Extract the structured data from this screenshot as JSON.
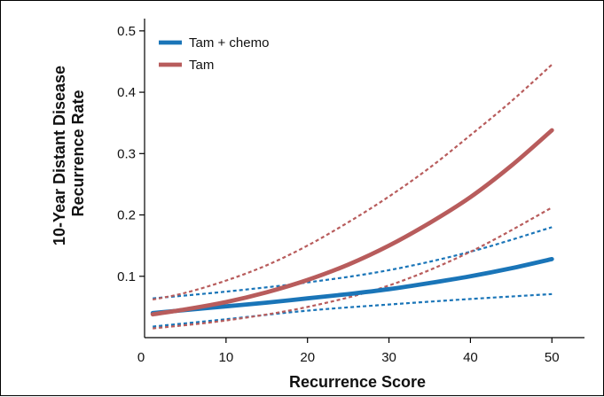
{
  "chart_data": {
    "type": "line",
    "xlabel": "Recurrence Score",
    "ylabel_lines": [
      "10-Year Distant Disease",
      "Recurrence Rate"
    ],
    "xlim": [
      0,
      54
    ],
    "ylim": [
      0,
      0.52
    ],
    "x_ticks": [
      0,
      10,
      20,
      30,
      40,
      50
    ],
    "x_tick_labels": [
      "0",
      "10",
      "20",
      "30",
      "40",
      "50"
    ],
    "y_ticks": [
      0.1,
      0.2,
      0.3,
      0.4,
      0.5
    ],
    "y_tick_labels": [
      "0.1",
      "0.2",
      "0.3",
      "0.4",
      "0.5"
    ],
    "grid": false,
    "legend_position": "top-left",
    "series": [
      {
        "name": "Tam + chemo",
        "color": "#1a75b8",
        "style": "solid",
        "in_legend": true,
        "x": [
          1,
          5,
          10,
          15,
          20,
          25,
          30,
          35,
          40,
          45,
          50
        ],
        "y": [
          0.04,
          0.045,
          0.051,
          0.057,
          0.064,
          0.071,
          0.079,
          0.089,
          0.1,
          0.113,
          0.128
        ]
      },
      {
        "name": "Tam",
        "color": "#b85c5c",
        "style": "solid",
        "in_legend": true,
        "x": [
          1,
          5,
          10,
          15,
          20,
          25,
          30,
          35,
          40,
          45,
          50
        ],
        "y": [
          0.038,
          0.046,
          0.058,
          0.074,
          0.094,
          0.119,
          0.15,
          0.187,
          0.229,
          0.28,
          0.338
        ]
      },
      {
        "name": "",
        "color": "#1a75b8",
        "style": "dashed",
        "in_legend": false,
        "x": [
          1,
          10,
          20,
          30,
          40,
          50
        ],
        "y": [
          0.064,
          0.075,
          0.09,
          0.11,
          0.14,
          0.18
        ]
      },
      {
        "name": "",
        "color": "#1a75b8",
        "style": "dashed",
        "in_legend": false,
        "x": [
          1,
          10,
          20,
          30,
          40,
          50
        ],
        "y": [
          0.018,
          0.03,
          0.044,
          0.054,
          0.063,
          0.071
        ]
      },
      {
        "name": "",
        "color": "#b85c5c",
        "style": "dashed",
        "in_legend": false,
        "x": [
          1,
          5,
          10,
          15,
          20,
          25,
          30,
          35,
          40,
          45,
          50
        ],
        "y": [
          0.062,
          0.073,
          0.093,
          0.118,
          0.15,
          0.188,
          0.23,
          0.277,
          0.33,
          0.385,
          0.445
        ]
      },
      {
        "name": "",
        "color": "#b85c5c",
        "style": "dashed",
        "in_legend": false,
        "x": [
          1,
          10,
          20,
          30,
          40,
          50
        ],
        "y": [
          0.015,
          0.028,
          0.05,
          0.085,
          0.14,
          0.212
        ]
      }
    ]
  }
}
